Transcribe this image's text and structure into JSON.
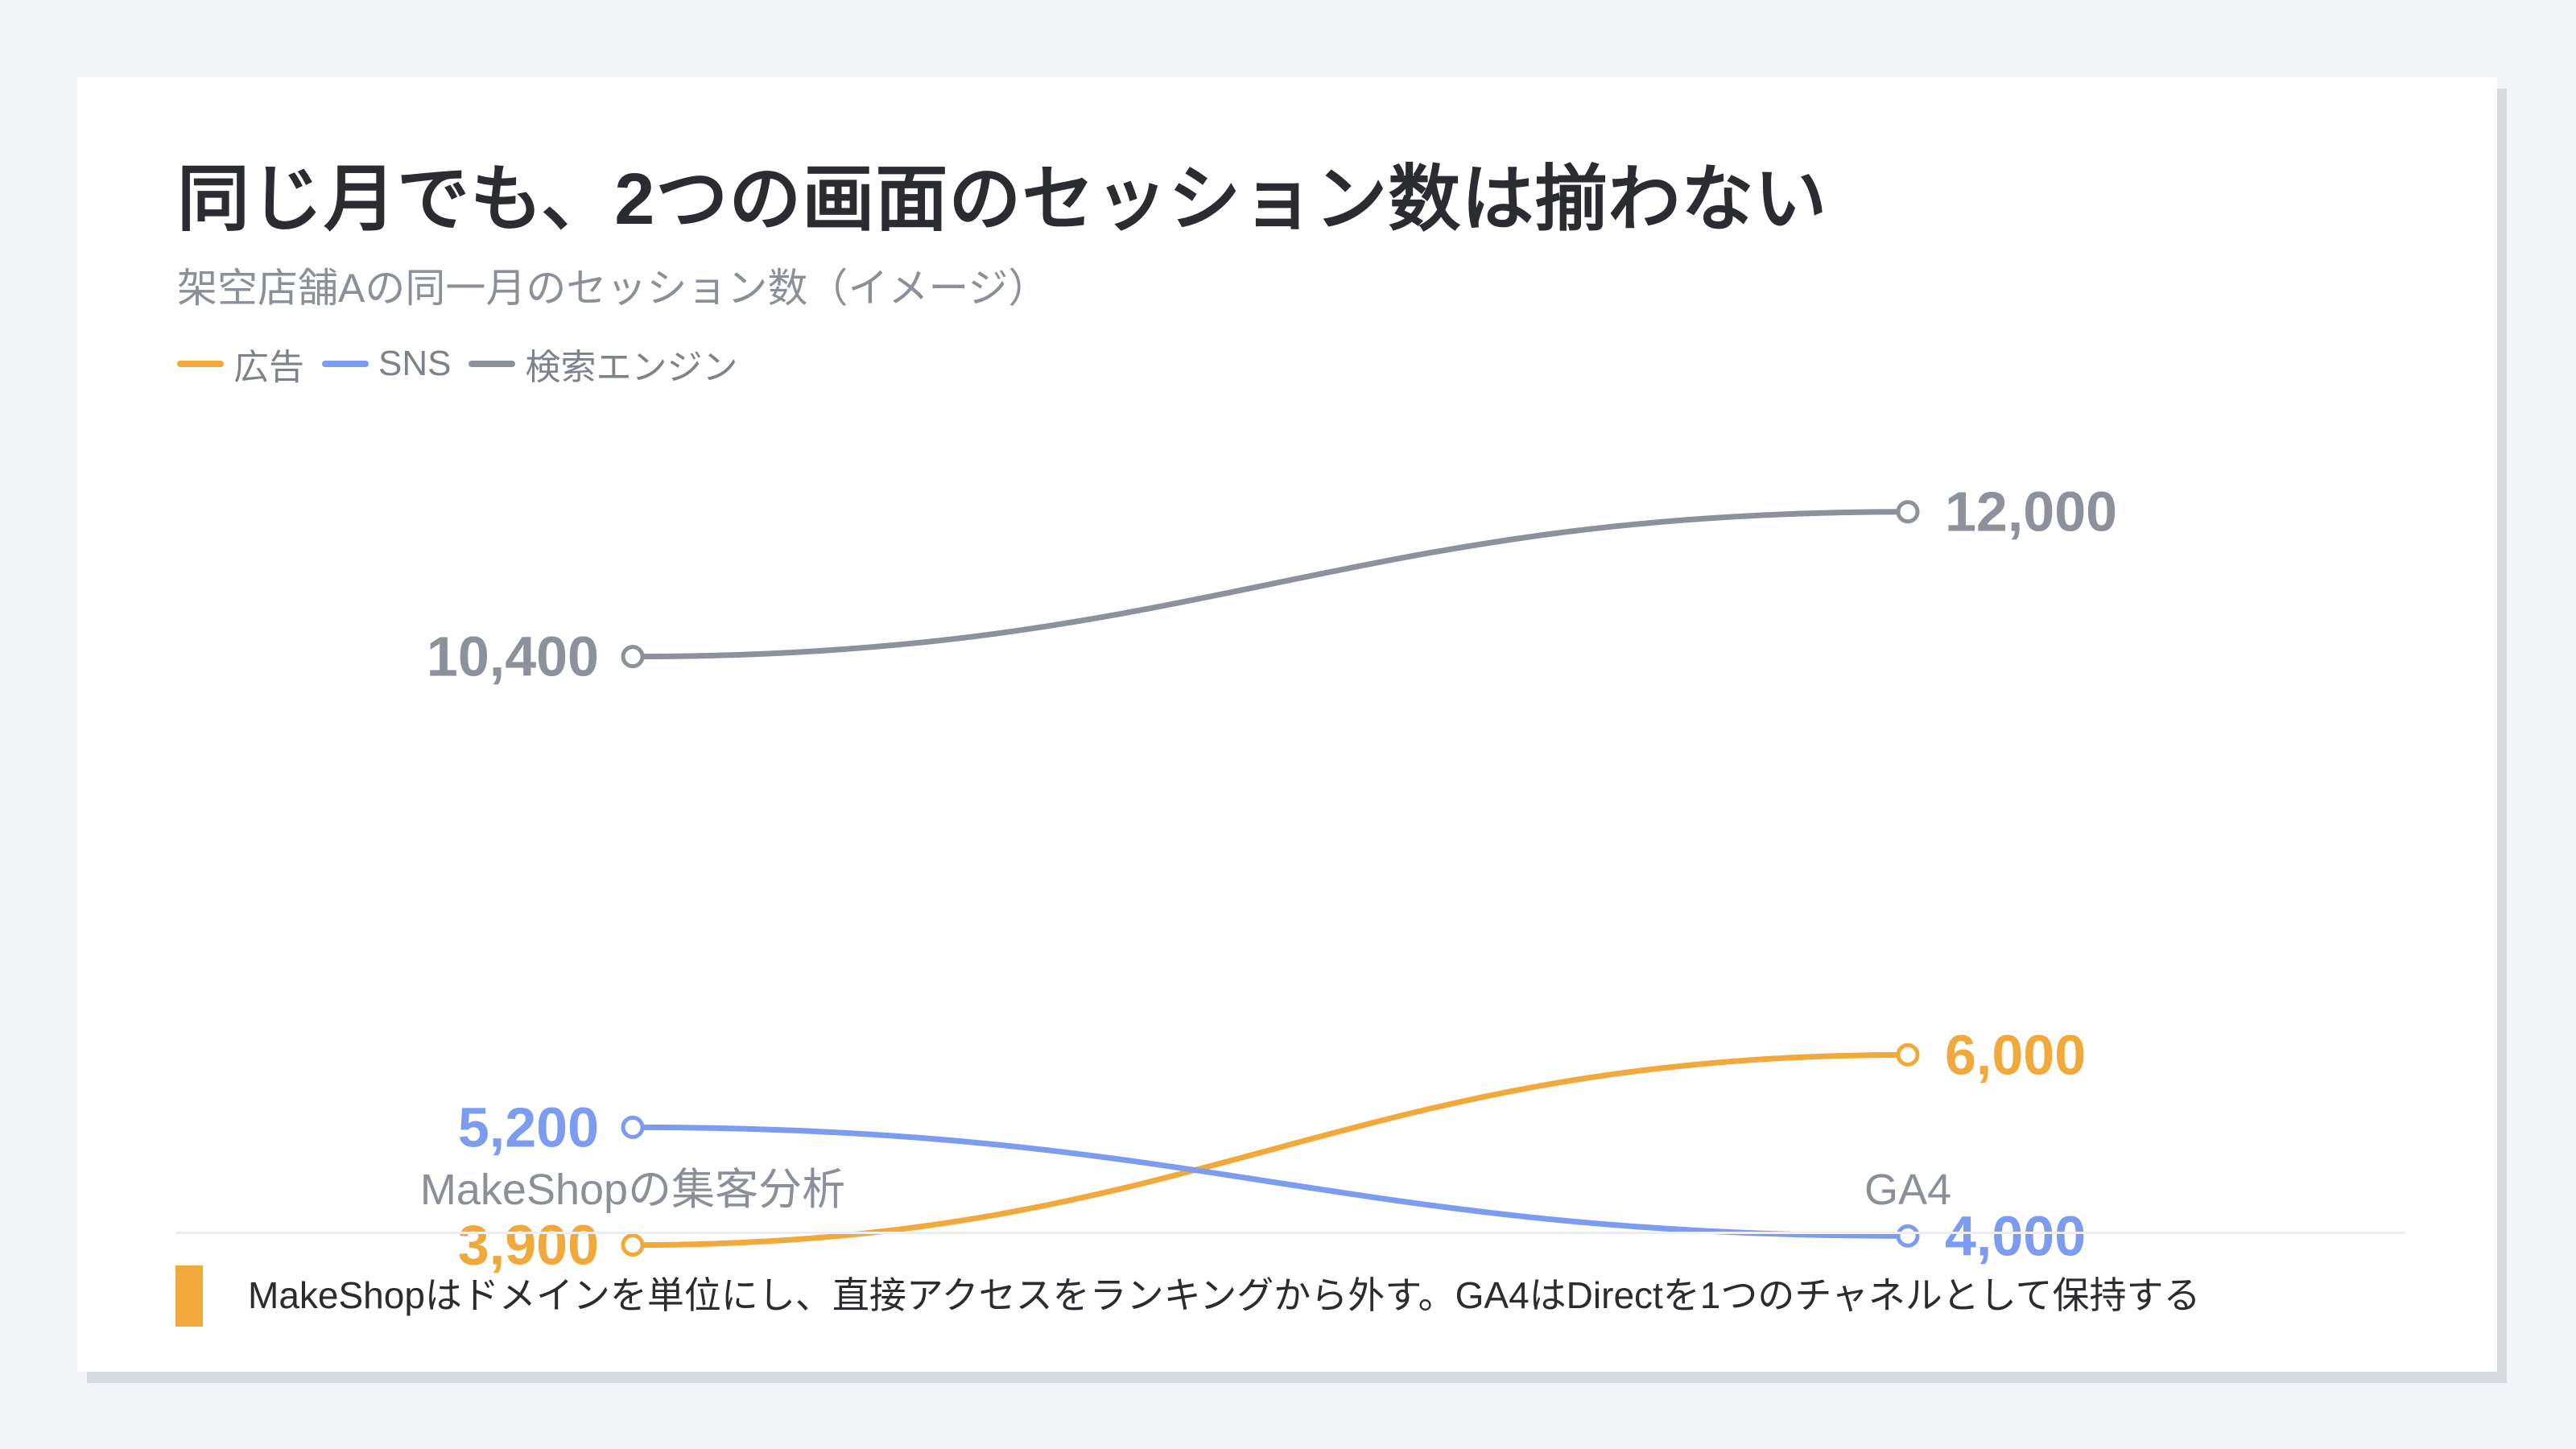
{
  "title": "同じ月でも、2つの画面のセッション数は揃わない",
  "subtitle": "架空店舗Aの同一月のセッション数（イメージ）",
  "legend": [
    {
      "label": "広告",
      "color": "#f2a93b"
    },
    {
      "label": "SNS",
      "color": "#7b9cf0"
    },
    {
      "label": "検索エンジン",
      "color": "#8c919c"
    }
  ],
  "note": {
    "text": "MakeShopはドメインを単位にし、直接アクセスをランキングから外す。GA4はDirectを1つのチャネルとして保持する",
    "accent_color": "#f2a93b"
  },
  "chart_data": {
    "type": "line",
    "categories": [
      "MakeShopの集客分析",
      "GA4"
    ],
    "series": [
      {
        "name": "広告",
        "values": [
          3900,
          6000
        ],
        "labels": [
          "3,900",
          "6,000"
        ],
        "color": "#f2a93b"
      },
      {
        "name": "SNS",
        "values": [
          5200,
          4000
        ],
        "labels": [
          "5,200",
          "4,000"
        ],
        "color": "#7b9cf0"
      },
      {
        "name": "検索エンジン",
        "values": [
          10400,
          12000
        ],
        "labels": [
          "10,400",
          "12,000"
        ],
        "color": "#8c919c"
      }
    ],
    "ylim": [
      2500,
      16800
    ],
    "grid": false,
    "legend_position": "top-left"
  }
}
